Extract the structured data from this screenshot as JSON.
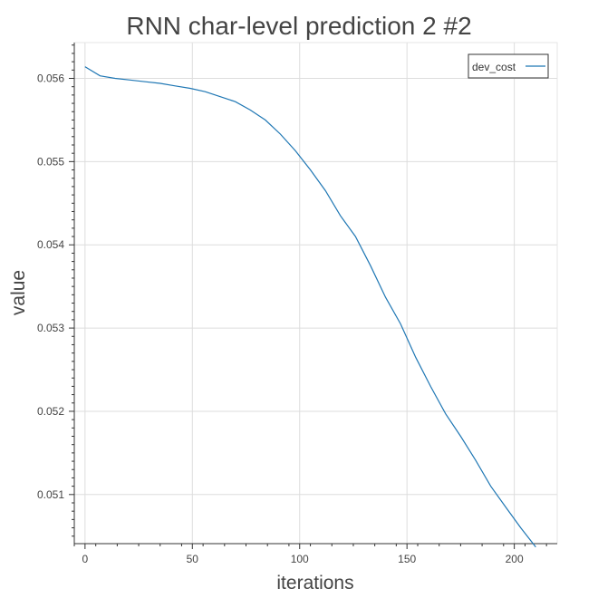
{
  "chart_data": {
    "type": "line",
    "title": "RNN char-level prediction 2 #2",
    "xlabel": "iterations",
    "ylabel": "value",
    "xlim": [
      -5,
      220
    ],
    "ylim": [
      0.05041,
      0.05643
    ],
    "x_ticks": [
      0,
      50,
      100,
      150,
      200
    ],
    "y_ticks": [
      0.051,
      0.052,
      0.053,
      0.054,
      0.055,
      0.056
    ],
    "x_tick_labels": [
      "0",
      "50",
      "100",
      "150",
      "200"
    ],
    "y_tick_labels": [
      "0.051",
      "0.052",
      "0.053",
      "0.054",
      "0.055",
      "0.056"
    ],
    "grid": true,
    "legend_position": "top-right",
    "colors": {
      "series": "#1f77b4",
      "grid": "#dddddd",
      "axis": "#333333",
      "text": "#444444"
    },
    "series": [
      {
        "name": "dev_cost",
        "x": [
          0,
          7,
          14,
          21,
          28,
          35,
          42,
          49,
          56,
          63,
          70,
          77,
          84,
          91,
          98,
          105,
          112,
          119,
          126,
          133,
          140,
          147,
          154,
          161,
          168,
          175,
          182,
          189,
          196,
          203,
          210
        ],
        "y": [
          0.05614,
          0.05603,
          0.056,
          0.05598,
          0.05596,
          0.05594,
          0.05591,
          0.05588,
          0.05584,
          0.05578,
          0.05572,
          0.05562,
          0.0555,
          0.05533,
          0.05513,
          0.0549,
          0.05465,
          0.05435,
          0.0541,
          0.05375,
          0.05337,
          0.05305,
          0.05265,
          0.0523,
          0.05197,
          0.0517,
          0.05141,
          0.0511,
          0.05085,
          0.0506,
          0.05037
        ]
      }
    ]
  }
}
